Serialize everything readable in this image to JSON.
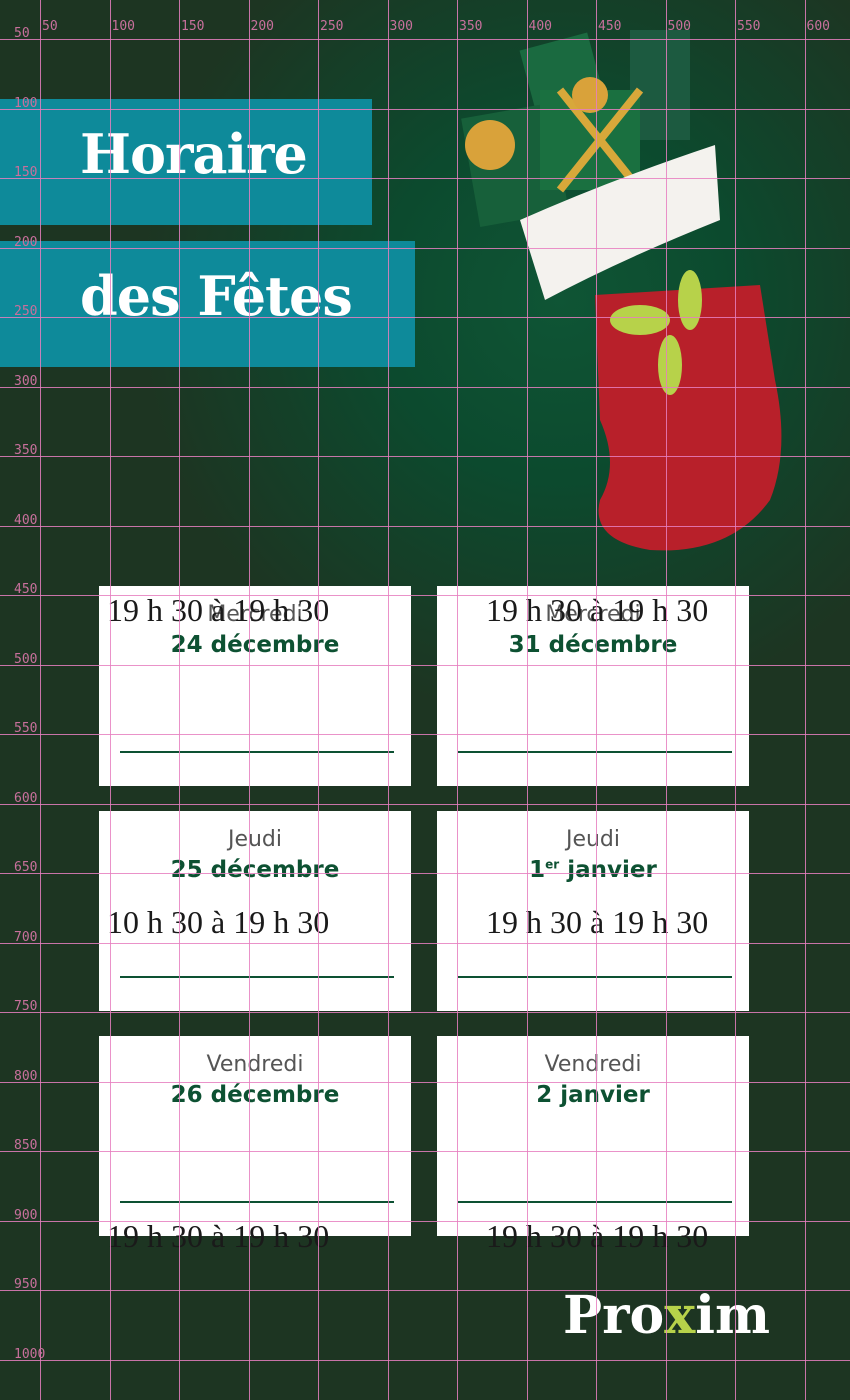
{
  "title": {
    "line1": "Horaire",
    "line2": "des Fêtes"
  },
  "colors": {
    "background": "#1d3522",
    "band": "#0e8a9a",
    "date": "#0d5132",
    "grid": "#e67fc0"
  },
  "cards": [
    {
      "day": "Mercredi",
      "date": "24 décembre",
      "time": "19 h 30 à 19 h 30"
    },
    {
      "day": "Mercredi",
      "date": "31 décembre",
      "time": "19 h 30 à 19 h 30"
    },
    {
      "day": "Jeudi",
      "date": "25 décembre",
      "time": "10 h 30 à 19 h 30"
    },
    {
      "day": "Jeudi",
      "date": "1er janvier",
      "time": "19 h 30 à 19 h 30"
    },
    {
      "day": "Vendredi",
      "date": "26 décembre",
      "time": "19 h 30 à 19 h 30"
    },
    {
      "day": "Vendredi",
      "date": "2 janvier",
      "time": "19 h 30 à 19 h 30"
    }
  ],
  "logo": "Proxim",
  "grid": {
    "x_labels": [
      "50",
      "100",
      "150",
      "200",
      "250",
      "300",
      "350",
      "400",
      "450",
      "500",
      "550",
      "600"
    ],
    "y_labels": [
      "50",
      "100",
      "150",
      "200",
      "250",
      "300",
      "350",
      "400",
      "450",
      "500",
      "550",
      "600",
      "650",
      "700",
      "750",
      "800",
      "850",
      "900",
      "950",
      "1000"
    ]
  },
  "illustration": "christmas-stocking-with-gifts"
}
